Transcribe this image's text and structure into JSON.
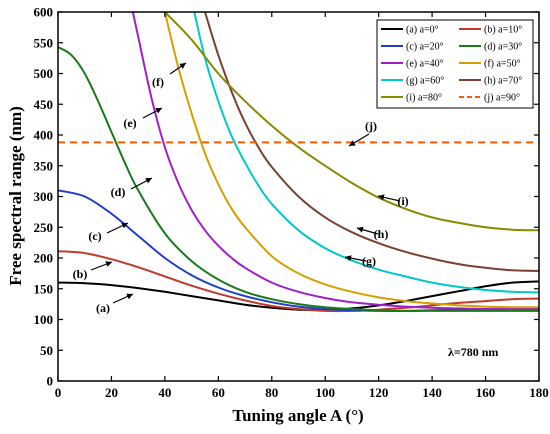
{
  "chart_data": {
    "type": "line",
    "xlabel": "Tuning angle A (°)",
    "ylabel": "Free spectral range (nm)",
    "xlim": [
      0,
      180
    ],
    "ylim": [
      0,
      600
    ],
    "xticks": [
      0,
      20,
      40,
      60,
      80,
      100,
      120,
      140,
      160,
      180
    ],
    "yticks": [
      0,
      50,
      100,
      150,
      200,
      250,
      300,
      350,
      400,
      450,
      500,
      550,
      600
    ],
    "legend_position": "top-right",
    "annotation_text": "λ=780 nm",
    "series": [
      {
        "name": "(a) a=0°",
        "label": "(a)",
        "color": "#000000",
        "dash": false,
        "x": [
          0,
          10,
          20,
          30,
          40,
          50,
          60,
          70,
          80,
          90,
          100,
          110,
          120,
          130,
          140,
          150,
          160,
          170,
          180
        ],
        "y": [
          160,
          159,
          156,
          151,
          145,
          138,
          131,
          124,
          119,
          116,
          116,
          118,
          123,
          130,
          138,
          146,
          154,
          160,
          162
        ]
      },
      {
        "name": "(b) a=10°",
        "label": "(b)",
        "color": "#c0392b",
        "dash": false,
        "x": [
          0,
          10,
          20,
          30,
          40,
          50,
          60,
          70,
          80,
          90,
          100,
          110,
          120,
          130,
          140,
          150,
          160,
          170,
          180
        ],
        "y": [
          211,
          208,
          198,
          185,
          170,
          155,
          142,
          131,
          122,
          117,
          114,
          114,
          116,
          119,
          123,
          127,
          130,
          133,
          134
        ]
      },
      {
        "name": "(c) a=20°",
        "label": "(c)",
        "color": "#1f3fc8",
        "dash": false,
        "x": [
          0,
          10,
          20,
          30,
          40,
          50,
          60,
          70,
          80,
          90,
          100,
          110,
          120,
          130,
          140,
          150,
          160,
          170,
          180
        ],
        "y": [
          310,
          300,
          272,
          236,
          200,
          172,
          152,
          138,
          128,
          121,
          117,
          115,
          114,
          114,
          115,
          116,
          117,
          118,
          118
        ]
      },
      {
        "name": "(d) a=30°",
        "label": "(d)",
        "color": "#1a7a1a",
        "dash": false,
        "x": [
          0,
          5,
          10,
          15,
          20,
          25,
          30,
          40,
          50,
          60,
          70,
          80,
          90,
          100,
          110,
          120,
          130,
          140,
          150,
          160,
          170,
          180
        ],
        "y": [
          543,
          530,
          500,
          455,
          405,
          355,
          310,
          240,
          195,
          165,
          145,
          133,
          125,
          120,
          117,
          115,
          114,
          114,
          114,
          114,
          114,
          114
        ]
      },
      {
        "name": "(e) a=40°",
        "label": "(e)",
        "color": "#a020c8",
        "dash": false,
        "x": [
          28,
          30,
          35,
          40,
          45,
          50,
          55,
          60,
          65,
          70,
          80,
          90,
          100,
          110,
          120,
          130,
          140,
          150,
          160,
          170,
          180
        ],
        "y": [
          600,
          560,
          460,
          380,
          322,
          278,
          245,
          220,
          200,
          184,
          160,
          145,
          135,
          128,
          124,
          121,
          119,
          118,
          117,
          117,
          117
        ]
      },
      {
        "name": "(f) a=50°",
        "label": "(f)",
        "color": "#d4a000",
        "dash": false,
        "x": [
          40,
          45,
          50,
          55,
          60,
          65,
          70,
          80,
          90,
          100,
          110,
          120,
          130,
          140,
          150,
          160,
          170,
          180
        ],
        "y": [
          600,
          510,
          435,
          370,
          320,
          280,
          250,
          203,
          175,
          157,
          145,
          136,
          130,
          126,
          123,
          121,
          120,
          120
        ]
      },
      {
        "name": "(g) a=60°",
        "label": "(g)",
        "color": "#00c8c8",
        "dash": false,
        "x": [
          51,
          55,
          60,
          65,
          70,
          75,
          80,
          90,
          100,
          110,
          120,
          130,
          140,
          150,
          160,
          170,
          180
        ],
        "y": [
          600,
          525,
          455,
          398,
          355,
          318,
          288,
          245,
          216,
          196,
          181,
          170,
          160,
          153,
          148,
          145,
          144
        ]
      },
      {
        "name": "(h) a=70°",
        "label": "(h)",
        "color": "#7a4030",
        "dash": false,
        "x": [
          55,
          60,
          65,
          70,
          75,
          80,
          90,
          100,
          110,
          120,
          130,
          140,
          150,
          160,
          170,
          180
        ],
        "y": [
          600,
          530,
          470,
          420,
          380,
          348,
          300,
          266,
          242,
          224,
          210,
          199,
          190,
          184,
          180,
          179
        ]
      },
      {
        "name": "(i) a=80°",
        "label": "(i)",
        "color": "#8a8a00",
        "dash": false,
        "x": [
          40,
          50,
          60,
          70,
          80,
          90,
          100,
          110,
          120,
          130,
          140,
          150,
          160,
          170,
          180
        ],
        "y": [
          600,
          555,
          500,
          455,
          415,
          380,
          350,
          322,
          298,
          280,
          266,
          257,
          250,
          246,
          245
        ]
      },
      {
        "name": "(j) a=90°",
        "label": "(j)",
        "color": "#ff5a00",
        "dash": true,
        "x": [
          0,
          180
        ],
        "y": [
          388,
          388
        ]
      }
    ]
  }
}
